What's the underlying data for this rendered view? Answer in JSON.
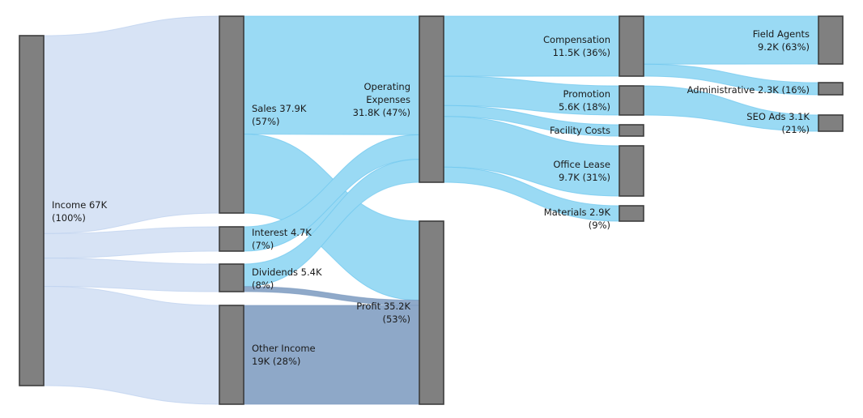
{
  "chart_data": {
    "type": "sankey",
    "colors": {
      "income_flow": "#d5e1f4",
      "expense_flow": "#9adaf4",
      "profit_flow": "#8fa9c9",
      "deep_profit_flow": "#8ea8c8",
      "node_fill": "#808080",
      "node_stroke": "#3d3d3d"
    },
    "nodes": [
      {
        "id": "income",
        "label": "Income 67K",
        "sublabel": "(100%)",
        "value": 67.0,
        "column": 0,
        "order": 0
      },
      {
        "id": "sales",
        "label": "Sales 37.9K",
        "sublabel": "(57%)",
        "value": 37.9,
        "column": 1,
        "order": 0
      },
      {
        "id": "interest",
        "label": "Interest 4.7K",
        "sublabel": "(7%)",
        "value": 4.7,
        "column": 1,
        "order": 1
      },
      {
        "id": "dividends",
        "label": "Dividends 5.4K",
        "sublabel": "(8%)",
        "value": 5.4,
        "column": 1,
        "order": 2
      },
      {
        "id": "other",
        "label": "Other Income",
        "sublabel": "19K (28%)",
        "value": 19.0,
        "column": 1,
        "order": 3
      },
      {
        "id": "opex",
        "label": "Operating",
        "label2": "Expenses",
        "sublabel": "31.8K (47%)",
        "value": 31.8,
        "column": 2,
        "order": 0
      },
      {
        "id": "profit",
        "label": "Profit 35.2K",
        "sublabel": "(53%)",
        "value": 35.2,
        "column": 2,
        "order": 1
      },
      {
        "id": "compensation",
        "label": "Compensation",
        "sublabel": "11.5K (36%)",
        "value": 11.5,
        "column": 3,
        "order": 0
      },
      {
        "id": "promotion",
        "label": "Promotion",
        "sublabel": "5.6K (18%)",
        "value": 5.6,
        "column": 3,
        "order": 1
      },
      {
        "id": "facility",
        "label": "Facility Costs",
        "sublabel": "",
        "value": 2.1,
        "column": 3,
        "order": 2
      },
      {
        "id": "lease",
        "label": "Office Lease",
        "sublabel": "9.7K (31%)",
        "value": 9.7,
        "column": 3,
        "order": 3
      },
      {
        "id": "materials",
        "label": "Materials 2.9K",
        "sublabel": "(9%)",
        "value": 2.9,
        "column": 3,
        "order": 4
      },
      {
        "id": "field",
        "label": "Field Agents",
        "sublabel": "9.2K (63%)",
        "value": 9.2,
        "column": 4,
        "order": 0
      },
      {
        "id": "admin",
        "label": "Administrative 2.3K (16%)",
        "sublabel": "",
        "value": 2.3,
        "column": 4,
        "order": 1
      },
      {
        "id": "seo",
        "label": "SEO Ads 3.1K",
        "sublabel": "(21%)",
        "value": 3.1,
        "column": 4,
        "order": 2
      }
    ],
    "links": [
      {
        "source": "income",
        "target": "sales",
        "value": 37.9,
        "kind": "income_flow"
      },
      {
        "source": "income",
        "target": "interest",
        "value": 4.7,
        "kind": "income_flow"
      },
      {
        "source": "income",
        "target": "dividends",
        "value": 5.4,
        "kind": "income_flow"
      },
      {
        "source": "income",
        "target": "other",
        "value": 19.0,
        "kind": "income_flow"
      },
      {
        "source": "sales",
        "target": "opex",
        "value": 22.7,
        "kind": "expense_flow"
      },
      {
        "source": "sales",
        "target": "profit",
        "value": 15.2,
        "kind": "expense_flow"
      },
      {
        "source": "interest",
        "target": "opex",
        "value": 4.7,
        "kind": "expense_flow"
      },
      {
        "source": "interest",
        "target": "profit",
        "value": 0.0,
        "kind": "profit_flow"
      },
      {
        "source": "dividends",
        "target": "opex",
        "value": 4.4,
        "kind": "expense_flow"
      },
      {
        "source": "dividends",
        "target": "profit",
        "value": 1.0,
        "kind": "profit_flow"
      },
      {
        "source": "other",
        "target": "profit",
        "value": 19.0,
        "kind": "deep_profit_flow"
      },
      {
        "source": "opex",
        "target": "compensation",
        "value": 11.5,
        "kind": "expense_flow"
      },
      {
        "source": "opex",
        "target": "promotion",
        "value": 5.6,
        "kind": "expense_flow"
      },
      {
        "source": "opex",
        "target": "facility",
        "value": 2.1,
        "kind": "expense_flow"
      },
      {
        "source": "opex",
        "target": "lease",
        "value": 9.7,
        "kind": "expense_flow"
      },
      {
        "source": "opex",
        "target": "materials",
        "value": 2.9,
        "kind": "expense_flow"
      },
      {
        "source": "compensation",
        "target": "field",
        "value": 9.2,
        "kind": "expense_flow"
      },
      {
        "source": "compensation",
        "target": "admin",
        "value": 2.3,
        "kind": "expense_flow"
      },
      {
        "source": "promotion",
        "target": "seo",
        "value": 3.1,
        "kind": "expense_flow"
      }
    ]
  }
}
